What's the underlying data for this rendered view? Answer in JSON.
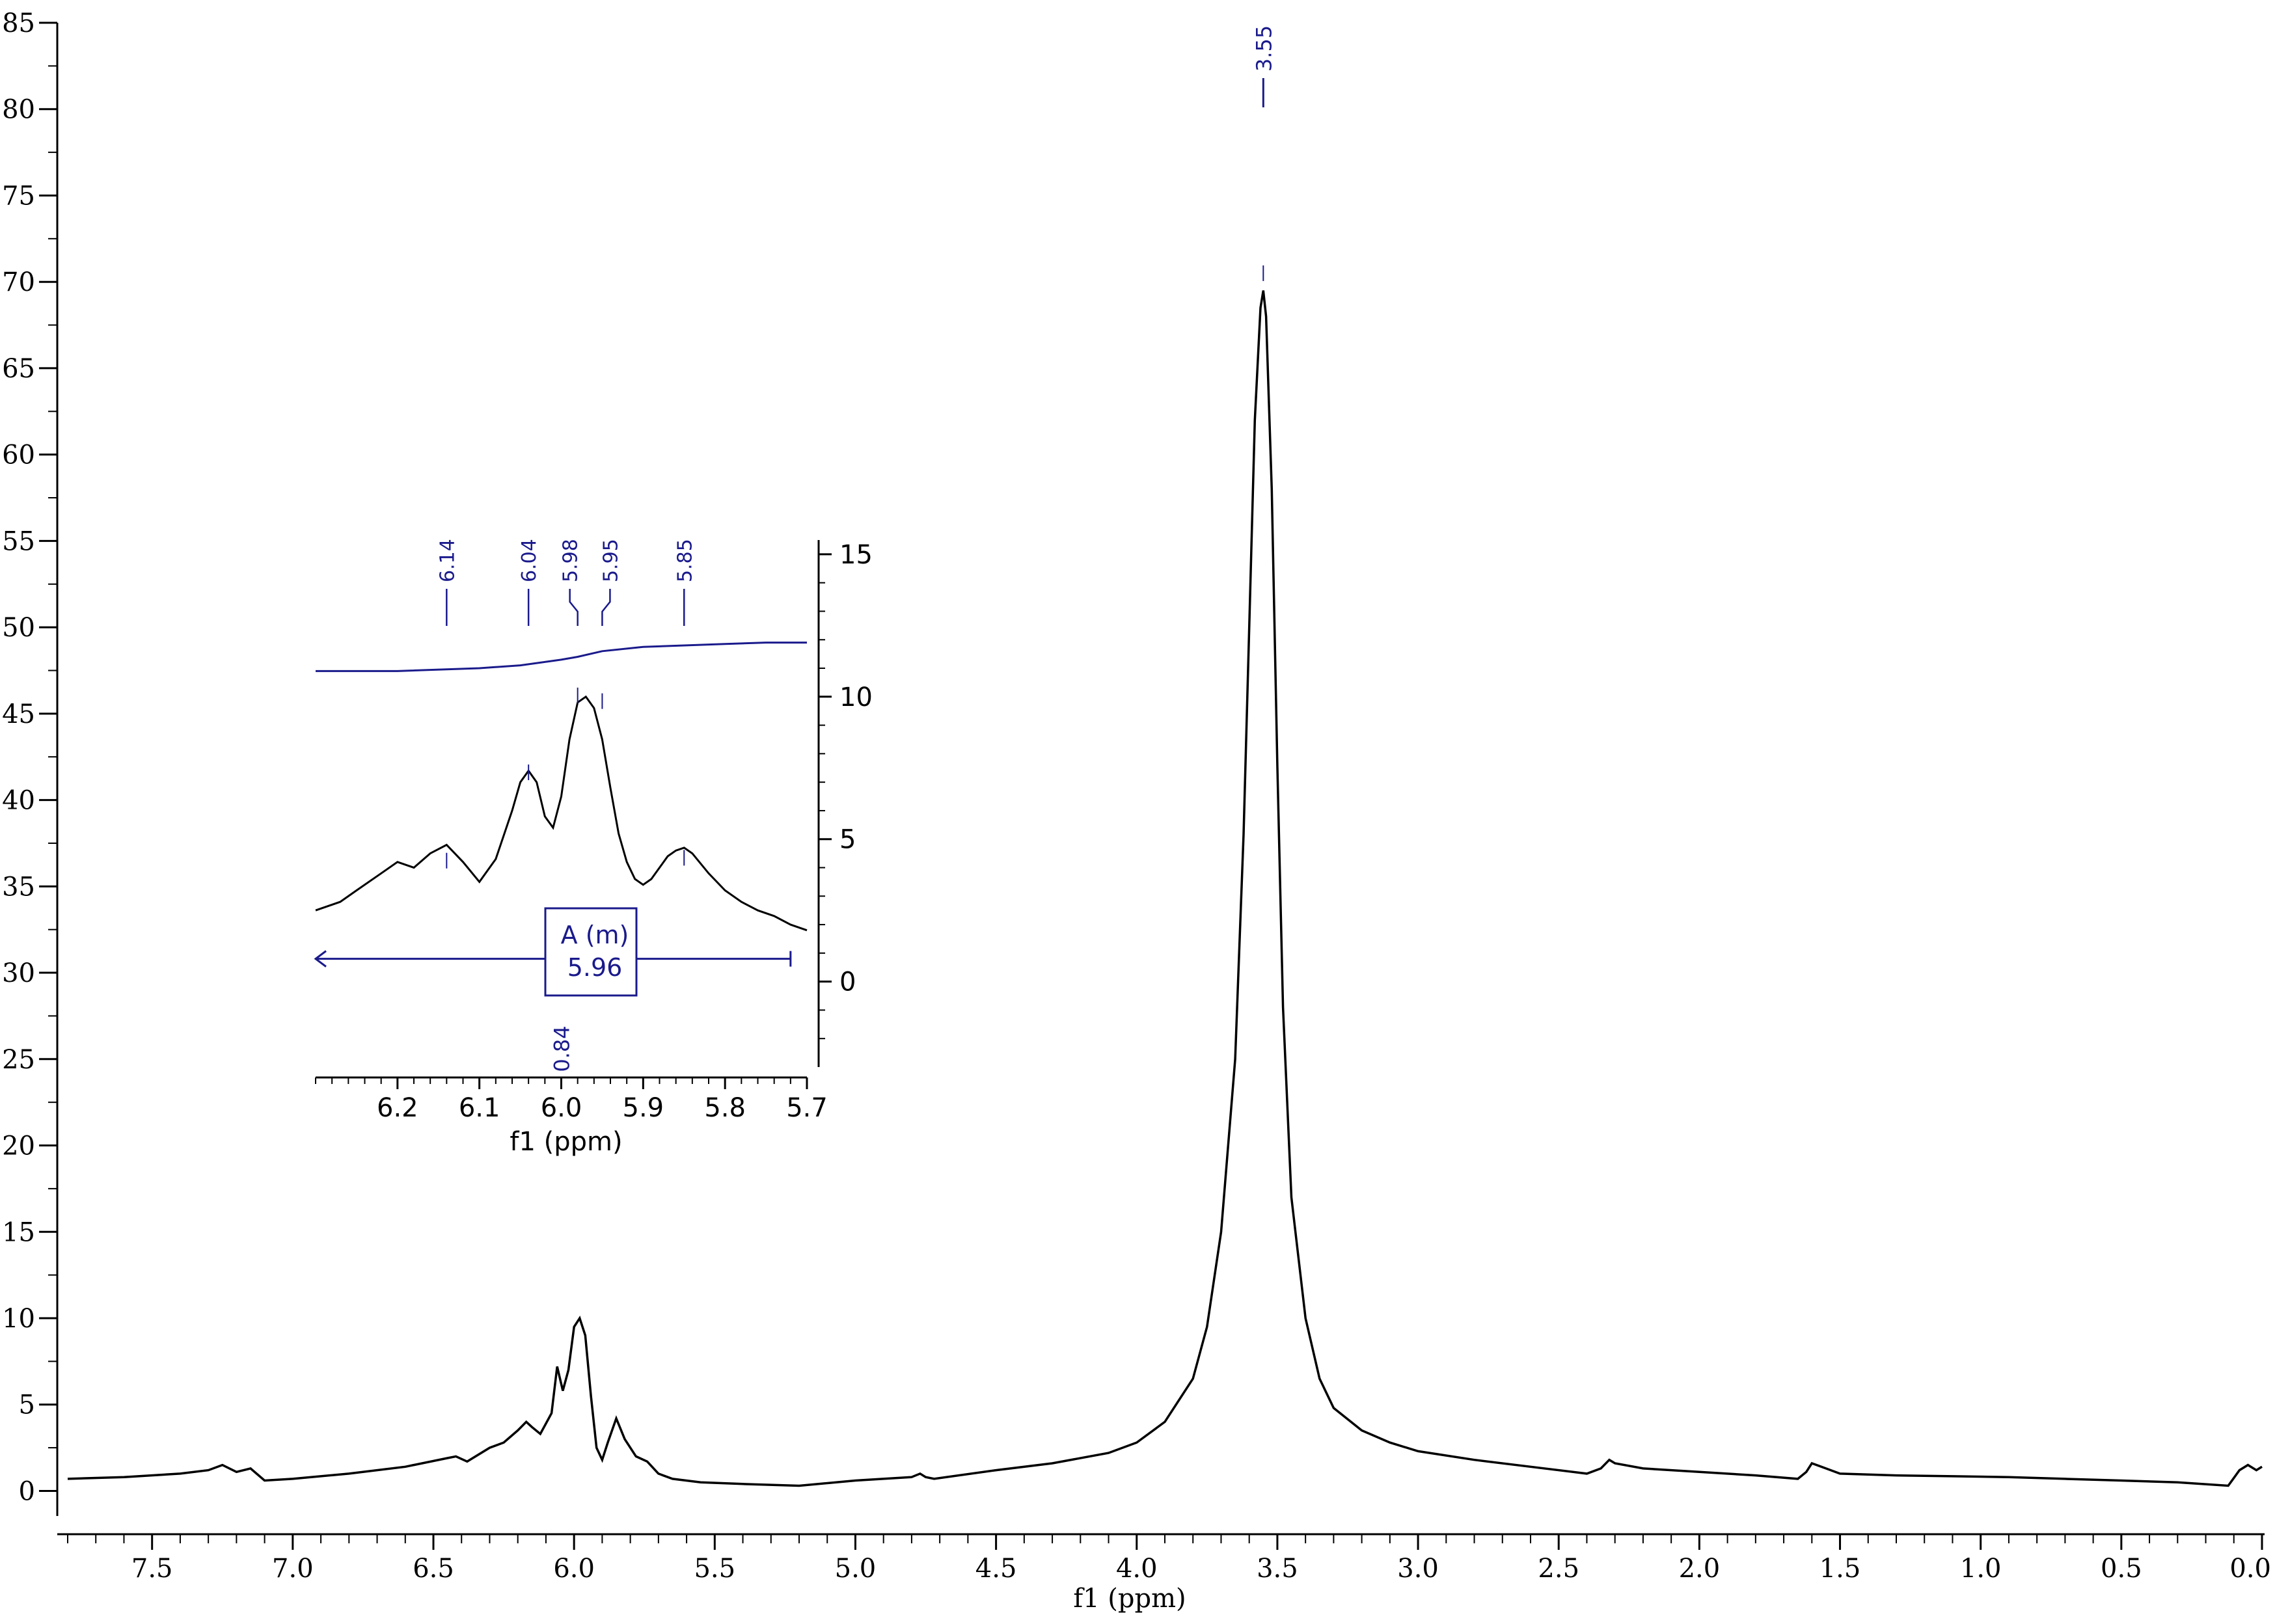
{
  "colors": {
    "spectrum": "#000000",
    "annotation": "#1a1a8c",
    "axis": "#000000"
  },
  "chart_data": [
    {
      "type": "line",
      "name": "main-spectrum",
      "title": "",
      "xlabel": "f1 (ppm)",
      "ylabel": "",
      "x_reversed": true,
      "xlim": [
        7.8,
        0.0
      ],
      "ylim": [
        -1,
        85
      ],
      "x_ticks": [
        "7.5",
        "7.0",
        "6.5",
        "6.0",
        "5.5",
        "5.0",
        "4.5",
        "4.0",
        "3.5",
        "3.0",
        "2.5",
        "2.0",
        "1.5",
        "1.0",
        "0.5",
        "0.0"
      ],
      "x_tick_values": [
        7.5,
        7.0,
        6.5,
        6.0,
        5.5,
        5.0,
        4.5,
        4.0,
        3.5,
        3.0,
        2.5,
        2.0,
        1.5,
        1.0,
        0.5,
        0.0
      ],
      "y_ticks": [
        "0",
        "5",
        "10",
        "15",
        "20",
        "25",
        "30",
        "35",
        "40",
        "45",
        "50",
        "55",
        "60",
        "65",
        "70",
        "75",
        "80",
        "85"
      ],
      "y_tick_values": [
        0,
        5,
        10,
        15,
        20,
        25,
        30,
        35,
        40,
        45,
        50,
        55,
        60,
        65,
        70,
        75,
        80,
        85
      ],
      "grid": false,
      "peak_labels": [
        {
          "label": "3.55",
          "ppm": 3.55,
          "height": 70.5
        }
      ],
      "series": [
        {
          "x": [
            7.8,
            7.6,
            7.4,
            7.3,
            7.25,
            7.2,
            7.15,
            7.1,
            7.0,
            6.8,
            6.6,
            6.45,
            6.42,
            6.38,
            6.3,
            6.25,
            6.2,
            6.17,
            6.15,
            6.12,
            6.08,
            6.06,
            6.04,
            6.02,
            6.0,
            5.98,
            5.96,
            5.94,
            5.92,
            5.9,
            5.88,
            5.85,
            5.82,
            5.78,
            5.74,
            5.7,
            5.65,
            5.55,
            5.4,
            5.2,
            5.0,
            4.8,
            4.77,
            4.75,
            4.72,
            4.5,
            4.3,
            4.1,
            4.0,
            3.9,
            3.8,
            3.75,
            3.7,
            3.65,
            3.62,
            3.6,
            3.58,
            3.56,
            3.55,
            3.54,
            3.52,
            3.5,
            3.48,
            3.45,
            3.4,
            3.35,
            3.3,
            3.2,
            3.1,
            3.0,
            2.8,
            2.6,
            2.4,
            2.35,
            2.32,
            2.3,
            2.2,
            2.0,
            1.8,
            1.65,
            1.62,
            1.6,
            1.55,
            1.5,
            1.3,
            1.1,
            0.9,
            0.7,
            0.5,
            0.3,
            0.12,
            0.08,
            0.05,
            0.02,
            0.0
          ],
          "y": [
            0.7,
            0.8,
            1.0,
            1.2,
            1.5,
            1.1,
            1.3,
            0.6,
            0.7,
            1.0,
            1.4,
            1.9,
            2.0,
            1.7,
            2.5,
            2.8,
            3.5,
            4.0,
            3.7,
            3.3,
            4.5,
            7.2,
            5.8,
            7.0,
            9.5,
            10.0,
            9.0,
            5.5,
            2.5,
            1.8,
            2.8,
            4.2,
            3.0,
            2.0,
            1.7,
            1.0,
            0.7,
            0.5,
            0.4,
            0.3,
            0.6,
            0.8,
            1.0,
            0.8,
            0.7,
            1.2,
            1.6,
            2.2,
            2.8,
            4.0,
            6.5,
            9.5,
            15.0,
            25.0,
            38.0,
            50.0,
            62.0,
            68.5,
            69.5,
            68.0,
            58.0,
            42.0,
            28.0,
            17.0,
            10.0,
            6.5,
            4.8,
            3.5,
            2.8,
            2.3,
            1.8,
            1.4,
            1.0,
            1.3,
            1.8,
            1.6,
            1.3,
            1.1,
            0.9,
            0.7,
            1.1,
            1.6,
            1.3,
            1.0,
            0.9,
            0.85,
            0.8,
            0.7,
            0.6,
            0.5,
            0.3,
            1.2,
            1.5,
            1.2,
            1.4
          ]
        }
      ]
    },
    {
      "type": "line",
      "name": "inset-spectrum",
      "title": "",
      "xlabel": "f1 (ppm)",
      "ylabel": "",
      "x_reversed": true,
      "xlim": [
        6.3,
        5.7
      ],
      "ylim": [
        -3,
        15.5
      ],
      "x_ticks": [
        "6.2",
        "6.1",
        "6.0",
        "5.9",
        "5.8",
        "5.7"
      ],
      "x_tick_values": [
        6.2,
        6.1,
        6.0,
        5.9,
        5.8,
        5.7
      ],
      "y_ticks": [
        "0",
        "5",
        "10",
        "15"
      ],
      "y_tick_values": [
        0,
        5,
        10,
        15
      ],
      "grid": false,
      "peak_labels": [
        {
          "label": "6.14",
          "ppm": 6.14,
          "height": 4.2
        },
        {
          "label": "6.04",
          "ppm": 6.04,
          "height": 7.3
        },
        {
          "label": "5.98",
          "ppm": 5.98,
          "height": 10.0
        },
        {
          "label": "5.95",
          "ppm": 5.95,
          "height": 9.8
        },
        {
          "label": "5.85",
          "ppm": 5.85,
          "height": 4.3
        }
      ],
      "multiplet": {
        "label": "A (m)",
        "value": "5.96",
        "ppm_from": 6.3,
        "ppm_to": 5.7
      },
      "integral": {
        "value": "0.84",
        "ppm": 6.0
      },
      "series": [
        {
          "x": [
            6.3,
            6.27,
            6.25,
            6.22,
            6.2,
            6.18,
            6.16,
            6.14,
            6.12,
            6.1,
            6.08,
            6.06,
            6.05,
            6.04,
            6.03,
            6.02,
            6.01,
            6.0,
            5.99,
            5.98,
            5.97,
            5.96,
            5.95,
            5.94,
            5.93,
            5.92,
            5.91,
            5.9,
            5.89,
            5.88,
            5.87,
            5.86,
            5.85,
            5.84,
            5.82,
            5.8,
            5.78,
            5.76,
            5.74,
            5.72,
            5.7
          ],
          "y": [
            2.5,
            2.8,
            3.2,
            3.8,
            4.2,
            4.0,
            4.5,
            4.8,
            4.2,
            3.5,
            4.3,
            6.0,
            7.0,
            7.4,
            7.0,
            5.8,
            5.4,
            6.5,
            8.5,
            9.8,
            10.0,
            9.6,
            8.5,
            6.8,
            5.2,
            4.2,
            3.6,
            3.4,
            3.6,
            4.0,
            4.4,
            4.6,
            4.7,
            4.5,
            3.8,
            3.2,
            2.8,
            2.5,
            2.3,
            2.0,
            1.8
          ]
        },
        {
          "name": "integral-curve",
          "x": [
            6.3,
            6.2,
            6.1,
            6.05,
            6.0,
            5.98,
            5.95,
            5.9,
            5.85,
            5.8,
            5.75,
            5.7
          ],
          "y": [
            10.9,
            10.9,
            11.0,
            11.1,
            11.3,
            11.4,
            11.6,
            11.75,
            11.8,
            11.85,
            11.9,
            11.9
          ]
        }
      ]
    }
  ]
}
